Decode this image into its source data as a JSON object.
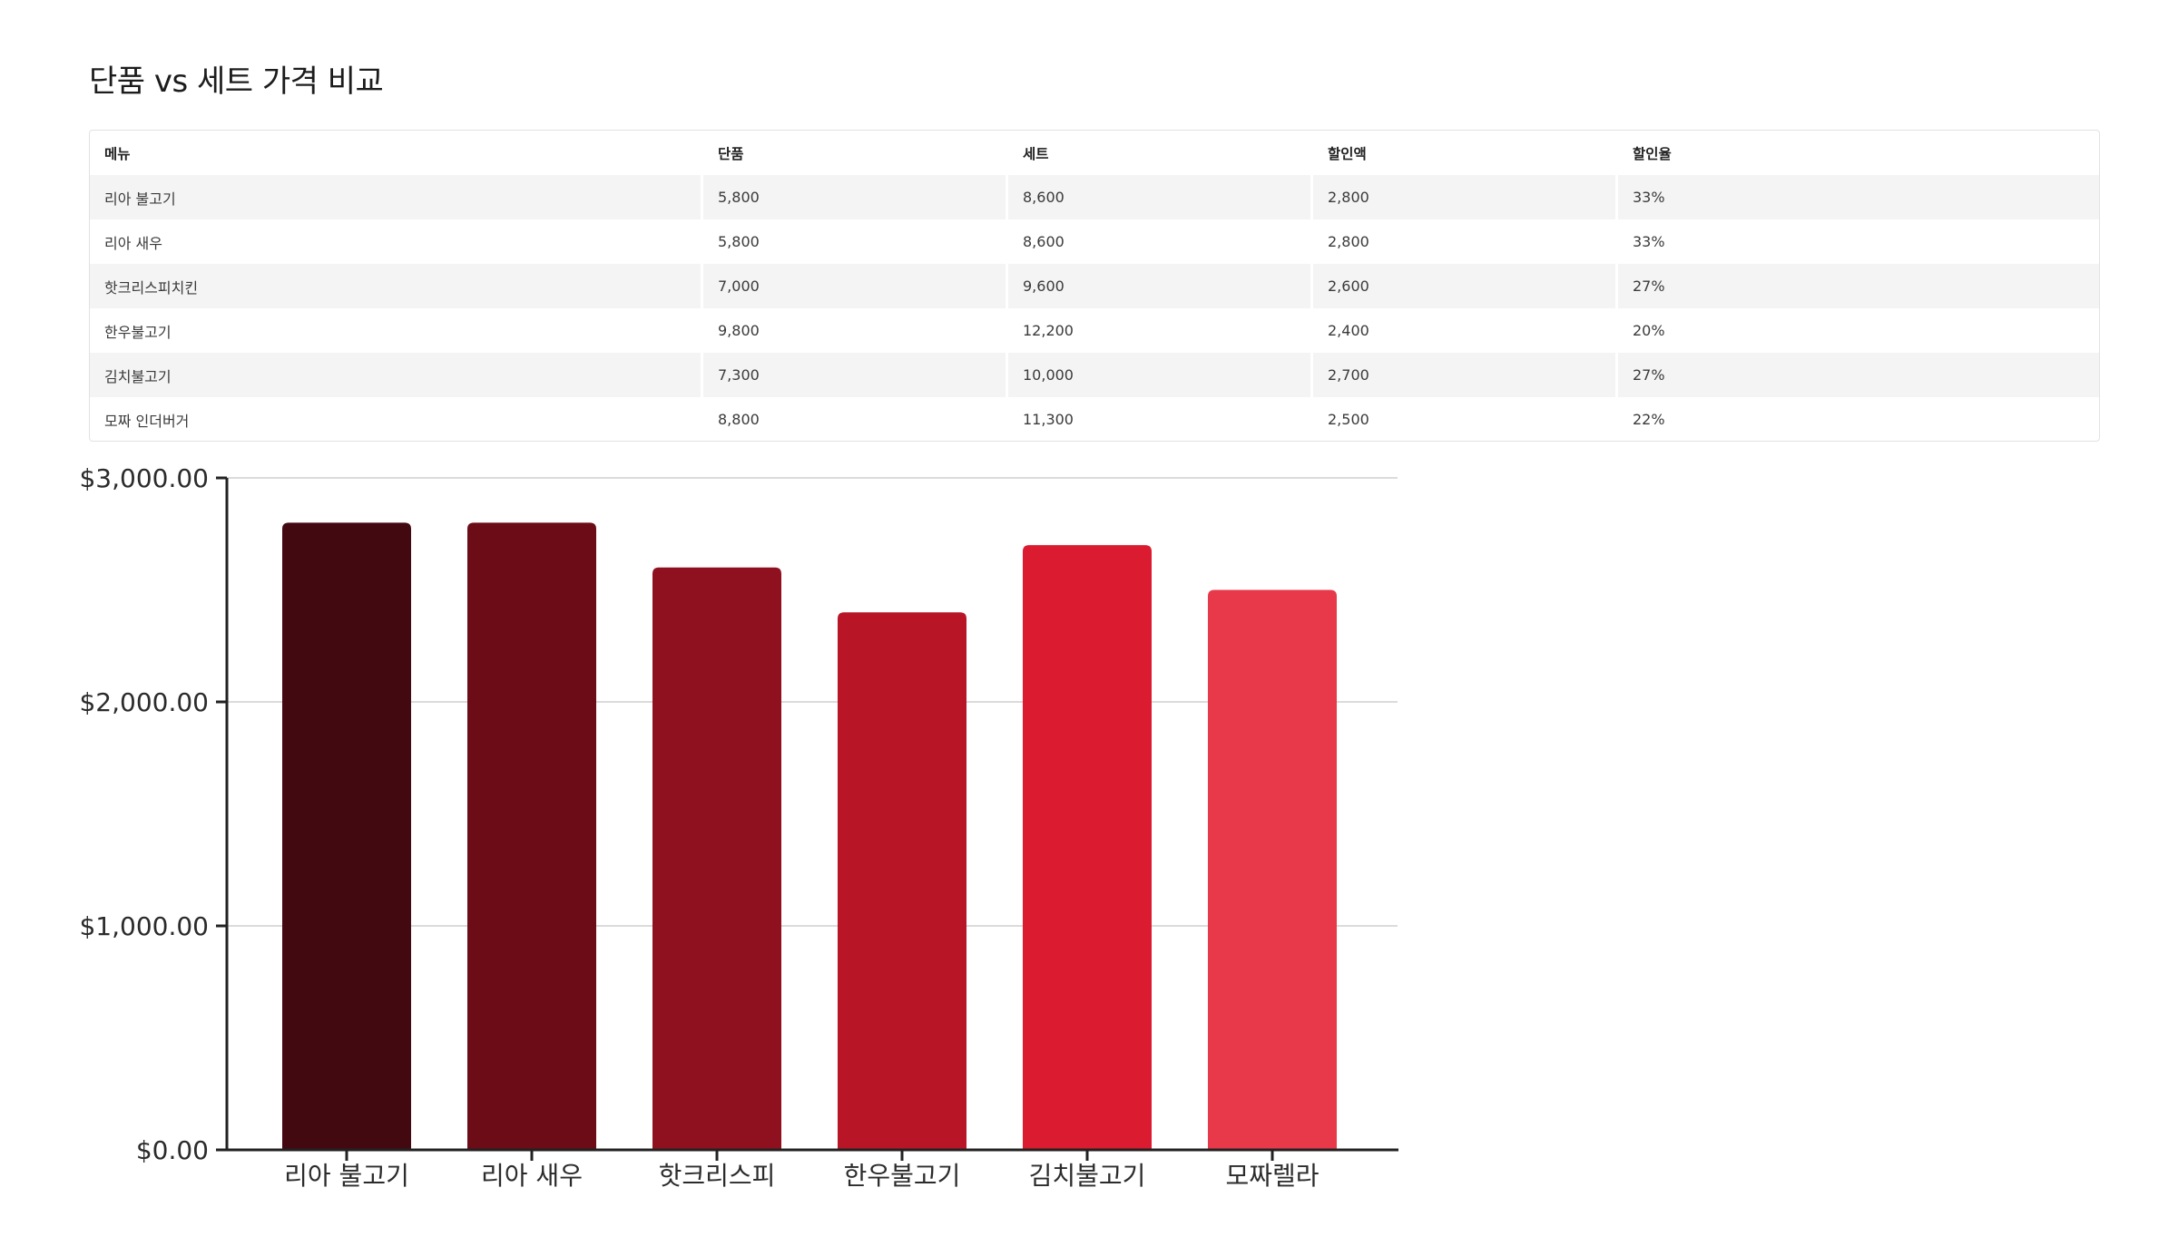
{
  "page": {
    "title": "단품 vs 세트 가격 비교"
  },
  "table": {
    "headers": [
      "메뉴",
      "단품",
      "세트",
      "할인액",
      "할인율"
    ],
    "rows": [
      [
        "리아 불고기",
        "5,800",
        "8,600",
        "2,800",
        "33%"
      ],
      [
        "리아 새우",
        "5,800",
        "8,600",
        "2,800",
        "33%"
      ],
      [
        "핫크리스피치킨",
        "7,000",
        "9,600",
        "2,600",
        "27%"
      ],
      [
        "한우불고기",
        "9,800",
        "12,200",
        "2,400",
        "20%"
      ],
      [
        "김치불고기",
        "7,300",
        "10,000",
        "2,700",
        "27%"
      ],
      [
        "모짜 인더버거",
        "8,800",
        "11,300",
        "2,500",
        "22%"
      ]
    ]
  },
  "chart_data": {
    "type": "bar",
    "categories": [
      "리아 불고기",
      "리아 새우",
      "핫크리스피",
      "한우불고기",
      "김치불고기",
      "모짜렐라"
    ],
    "values": [
      2800,
      2800,
      2600,
      2400,
      2700,
      2500
    ],
    "colors": [
      "#430910",
      "#6b0c17",
      "#8f111f",
      "#b81627",
      "#db1b2f",
      "#e8394b"
    ],
    "ylim": [
      0,
      3000
    ],
    "yticks": [
      0,
      1000,
      2000,
      3000
    ],
    "ytick_labels": [
      "$0.00",
      "$1,000.00",
      "$2,000.00",
      "$3,000.00"
    ],
    "grid": true,
    "xlabel": "",
    "ylabel": ""
  }
}
